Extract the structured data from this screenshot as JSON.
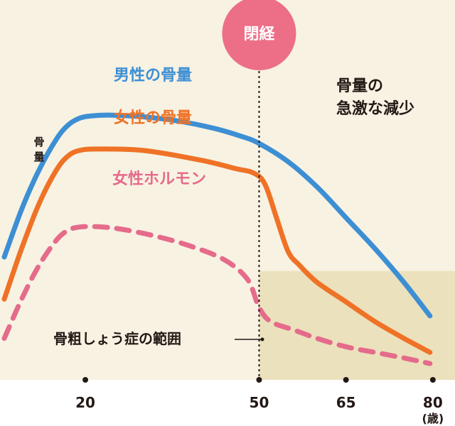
{
  "chart_data": {
    "type": "line",
    "ylabel": "骨量",
    "x_unit": "(歳)",
    "x_ticks": [
      20,
      50,
      65,
      80
    ],
    "xlim": [
      6,
      81
    ],
    "ylim": [
      0,
      100
    ],
    "menopause": {
      "label": "閉経",
      "age": 50
    },
    "annotation": "骨量の\n急激な減少",
    "osteoporosis_label": "骨粗しょう症の範囲",
    "osteoporosis_threshold": 35,
    "series": [
      {
        "name": "男性の骨量",
        "color": "#3d8fd4",
        "dashed": false,
        "points": [
          [
            6,
            40
          ],
          [
            9,
            57
          ],
          [
            12,
            71
          ],
          [
            15,
            82
          ],
          [
            17,
            87
          ],
          [
            19,
            89.5
          ],
          [
            21,
            90.3
          ],
          [
            24,
            90.6
          ],
          [
            30,
            90
          ],
          [
            36,
            88.5
          ],
          [
            42,
            86
          ],
          [
            47,
            83
          ],
          [
            50,
            80.5
          ],
          [
            55,
            74
          ],
          [
            60,
            65
          ],
          [
            65,
            54
          ],
          [
            70,
            43
          ],
          [
            75,
            31
          ],
          [
            79.5,
            19
          ]
        ]
      },
      {
        "name": "女性の骨量",
        "color": "#ef7226",
        "dashed": false,
        "points": [
          [
            6,
            25
          ],
          [
            9,
            43
          ],
          [
            12,
            59
          ],
          [
            15,
            71
          ],
          [
            17,
            76
          ],
          [
            19,
            78
          ],
          [
            22,
            78.5
          ],
          [
            30,
            78
          ],
          [
            40,
            74.5
          ],
          [
            46,
            71.5
          ],
          [
            49,
            70
          ],
          [
            51,
            66
          ],
          [
            53,
            54
          ],
          [
            55,
            42
          ],
          [
            57,
            37
          ],
          [
            60,
            31
          ],
          [
            65,
            24
          ],
          [
            70,
            17
          ],
          [
            75,
            11
          ],
          [
            79.5,
            6
          ]
        ]
      },
      {
        "name": "女性ホルモン",
        "color": "#e56b8b",
        "dashed": true,
        "points": [
          [
            6,
            11
          ],
          [
            9,
            25
          ],
          [
            12,
            37
          ],
          [
            15,
            46
          ],
          [
            17,
            49.5
          ],
          [
            19,
            50.7
          ],
          [
            22,
            50.8
          ],
          [
            26,
            50
          ],
          [
            32,
            47.5
          ],
          [
            38,
            44
          ],
          [
            44,
            39
          ],
          [
            48,
            32
          ],
          [
            50,
            22
          ],
          [
            52,
            17
          ],
          [
            56,
            14
          ],
          [
            60,
            11
          ],
          [
            65,
            8
          ],
          [
            70,
            6
          ],
          [
            75,
            4
          ],
          [
            79.5,
            2
          ]
        ]
      }
    ]
  },
  "colors": {
    "background_normal": "#f8f2e3",
    "background_osteoporosis": "#ebe1bc",
    "menopause_circle": "#ec6f87",
    "text": "#231815"
  }
}
